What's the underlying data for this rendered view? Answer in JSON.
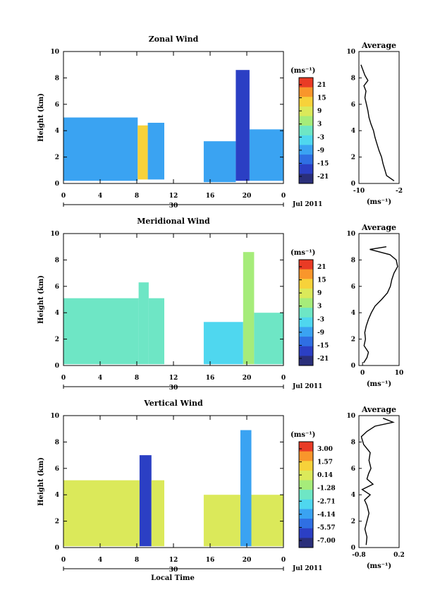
{
  "footer": {
    "xlabel": "Local Time"
  },
  "colors": {
    "ramp": [
      "#2a2f7a",
      "#2b3fc4",
      "#2f6fe3",
      "#3aa3f2",
      "#4fd7ef",
      "#6ee6c5",
      "#a6ec7a",
      "#dbe95a",
      "#f7d23a",
      "#f9962b",
      "#e93b25"
    ],
    "contour": "#000000"
  },
  "chart_data": [
    {
      "type": "heatmap",
      "title": "Zonal Wind",
      "ylabel": "Height (km)",
      "ylim": [
        0,
        10
      ],
      "yticks": [
        "0",
        "2",
        "4",
        "6",
        "8",
        "10"
      ],
      "xlim": [
        0,
        24
      ],
      "xticks": [
        "0",
        "4",
        "8",
        "12",
        "16",
        "20",
        "0"
      ],
      "date_label": "30",
      "month_label": "Jul 2011",
      "colorbar": {
        "unit": "(ms⁻¹)",
        "ticks": [
          "21",
          "15",
          "9",
          "3",
          "-3",
          "-9",
          "-15",
          "-21"
        ],
        "range": [
          -24,
          24
        ]
      },
      "blocks": [
        {
          "t": [
            0,
            8.1
          ],
          "h": [
            0.2,
            5.0
          ],
          "v": -9
        },
        {
          "t": [
            8.1,
            9.2
          ],
          "h": [
            0.3,
            4.4
          ],
          "v": 12
        },
        {
          "t": [
            9.2,
            11
          ],
          "h": [
            0.3,
            4.6
          ],
          "v": -9
        },
        {
          "t": [
            15.3,
            18.8
          ],
          "h": [
            0.1,
            3.2
          ],
          "v": -8
        },
        {
          "t": [
            18.8,
            20.3
          ],
          "h": [
            0.2,
            8.6
          ],
          "v": -17
        },
        {
          "t": [
            20.3,
            24
          ],
          "h": [
            0.2,
            4.1
          ],
          "v": -9
        }
      ],
      "profile": {
        "title": "Average",
        "xlabel": "(ms⁻¹)",
        "xlim": [
          -10,
          -2
        ],
        "xticks": [
          {
            "v": -10,
            "l": "-10"
          },
          {
            "v": -2,
            "l": "-2"
          }
        ],
        "heights": [
          0.2,
          0.6,
          1.0,
          1.5,
          2.0,
          2.5,
          3.0,
          3.5,
          4.0,
          4.5,
          5.0,
          5.5,
          6.0,
          6.5,
          7.0,
          7.4,
          7.8,
          8.2,
          8.6,
          9.0
        ],
        "values": [
          -3.0,
          -4.5,
          -4.8,
          -5.2,
          -5.5,
          -6.0,
          -6.4,
          -6.8,
          -7.1,
          -7.6,
          -8.0,
          -8.2,
          -8.5,
          -8.8,
          -8.6,
          -9.0,
          -8.2,
          -8.8,
          -9.2,
          -9.6
        ]
      }
    },
    {
      "type": "heatmap",
      "title": "Meridional Wind",
      "ylabel": "Height (km)",
      "ylim": [
        0,
        10
      ],
      "yticks": [
        "0",
        "2",
        "4",
        "6",
        "8",
        "10"
      ],
      "xlim": [
        0,
        24
      ],
      "xticks": [
        "0",
        "4",
        "8",
        "12",
        "16",
        "20",
        "0"
      ],
      "date_label": "30",
      "month_label": "Jul 2011",
      "colorbar": {
        "unit": "(ms⁻¹)",
        "ticks": [
          "21",
          "15",
          "9",
          "3",
          "-3",
          "-9",
          "-15",
          "-21"
        ],
        "range": [
          -24,
          24
        ]
      },
      "blocks": [
        {
          "t": [
            0,
            8.2
          ],
          "h": [
            0.1,
            5.1
          ],
          "v": -1
        },
        {
          "t": [
            8.2,
            9.3
          ],
          "h": [
            0.1,
            6.3
          ],
          "v": 1
        },
        {
          "t": [
            9.3,
            11
          ],
          "h": [
            0.1,
            5.1
          ],
          "v": -2
        },
        {
          "t": [
            15.3,
            19.6
          ],
          "h": [
            0.1,
            3.3
          ],
          "v": -3
        },
        {
          "t": [
            19.6,
            20.8
          ],
          "h": [
            0.1,
            8.6
          ],
          "v": 4
        },
        {
          "t": [
            20.8,
            24
          ],
          "h": [
            0.1,
            4.0
          ],
          "v": -2
        }
      ],
      "profile": {
        "title": "Average",
        "xlabel": "(ms⁻¹)",
        "xlim": [
          -1,
          10
        ],
        "xticks": [
          {
            "v": 0,
            "l": "0"
          },
          {
            "v": 10,
            "l": "10"
          }
        ],
        "heights": [
          0.2,
          0.6,
          1.0,
          1.5,
          2.0,
          2.5,
          3.0,
          3.5,
          4.0,
          4.5,
          5.0,
          5.5,
          6.0,
          6.5,
          7.0,
          7.5,
          8.0,
          8.4,
          8.8,
          9.0
        ],
        "values": [
          0.3,
          1.2,
          1.6,
          0.4,
          0.8,
          0.6,
          1.0,
          1.6,
          2.4,
          3.4,
          5.2,
          6.8,
          7.6,
          8.0,
          8.6,
          9.6,
          9.2,
          7.5,
          2.0,
          6.5
        ]
      }
    },
    {
      "type": "heatmap",
      "title": "Vertical Wind",
      "ylabel": "Height (km)",
      "ylim": [
        0,
        10
      ],
      "yticks": [
        "0",
        "2",
        "4",
        "6",
        "8",
        "10"
      ],
      "xlim": [
        0,
        24
      ],
      "xticks": [
        "0",
        "4",
        "8",
        "12",
        "16",
        "20",
        "0"
      ],
      "date_label": "30",
      "month_label": "Jul 2011",
      "colorbar": {
        "unit": "(ms⁻¹)",
        "ticks": [
          "3.00",
          "1.57",
          "0.14",
          "-1.28",
          "-2.71",
          "-4.14",
          "-5.57",
          "-7.00"
        ],
        "range": [
          -8.4,
          4.4
        ]
      },
      "blocks": [
        {
          "t": [
            0,
            8.3
          ],
          "h": [
            0.1,
            5.1
          ],
          "v": 0.2
        },
        {
          "t": [
            8.3,
            9.6
          ],
          "h": [
            0.1,
            7.0
          ],
          "v": -6.5
        },
        {
          "t": [
            9.6,
            11
          ],
          "h": [
            0.1,
            5.1
          ],
          "v": 0.1
        },
        {
          "t": [
            15.3,
            19.3
          ],
          "h": [
            0.1,
            4.0
          ],
          "v": 0.3
        },
        {
          "t": [
            19.3,
            20.5
          ],
          "h": [
            0.1,
            8.9
          ],
          "v": -4.5
        },
        {
          "t": [
            20.5,
            24
          ],
          "h": [
            0.1,
            4.0
          ],
          "v": 0.2
        }
      ],
      "profile": {
        "title": "Average",
        "xlabel": "(ms⁻¹)",
        "xlim": [
          -0.8,
          0.2
        ],
        "xticks": [
          {
            "v": -0.8,
            "l": "-0.8"
          },
          {
            "v": 0.2,
            "l": "0.2"
          }
        ],
        "heights": [
          0.2,
          0.8,
          1.4,
          2.0,
          2.6,
          3.2,
          3.6,
          4.0,
          4.4,
          4.8,
          5.2,
          5.6,
          6.0,
          6.6,
          7.2,
          7.8,
          8.4,
          8.8,
          9.2,
          9.5,
          9.8
        ],
        "values": [
          -0.62,
          -0.6,
          -0.65,
          -0.6,
          -0.55,
          -0.6,
          -0.66,
          -0.52,
          -0.72,
          -0.45,
          -0.6,
          -0.56,
          -0.5,
          -0.55,
          -0.52,
          -0.68,
          -0.74,
          -0.6,
          -0.4,
          0.05,
          -0.2
        ]
      }
    }
  ]
}
